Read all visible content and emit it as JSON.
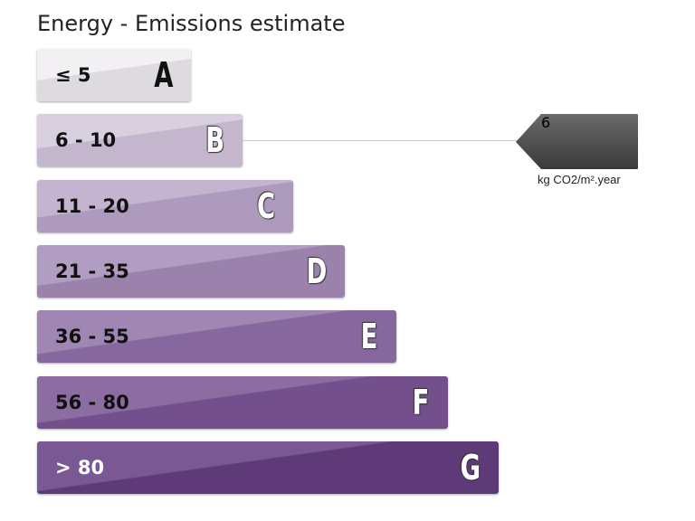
{
  "title": "Energy - Emissions estimate",
  "bands": [
    {
      "range": "≤ 5",
      "letter": "A"
    },
    {
      "range": "6 - 10",
      "letter": "B"
    },
    {
      "range": "11 - 20",
      "letter": "C"
    },
    {
      "range": "21 - 35",
      "letter": "D"
    },
    {
      "range": "36 - 55",
      "letter": "E"
    },
    {
      "range": "56 - 80",
      "letter": "F"
    },
    {
      "range": "> 80",
      "letter": "G"
    }
  ],
  "indicator": {
    "value": "6",
    "unit": "kg CO2/m².year"
  }
}
